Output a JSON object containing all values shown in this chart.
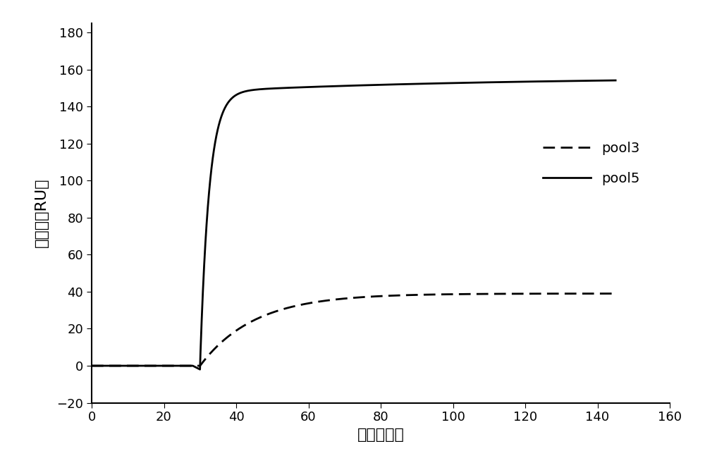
{
  "title": "",
  "xlabel": "时间（秒）",
  "ylabel": "响应値（RU）",
  "xlim": [
    0,
    160
  ],
  "ylim": [
    -20,
    185
  ],
  "xticks": [
    0,
    20,
    40,
    60,
    80,
    100,
    120,
    140,
    160
  ],
  "yticks": [
    -20,
    0,
    20,
    40,
    60,
    80,
    100,
    120,
    140,
    160,
    180
  ],
  "background_color": "#ffffff",
  "line_color": "#000000",
  "xlabel_fontsize": 16,
  "ylabel_fontsize": 16,
  "tick_fontsize": 13,
  "pool5_plateau_fast": 148,
  "pool5_plateau_slow": 156,
  "pool3_plateau": 39,
  "rise_start": 30,
  "pool5_tau_fast": 2.5,
  "pool5_tau_slow": 80,
  "pool3_tau": 15
}
